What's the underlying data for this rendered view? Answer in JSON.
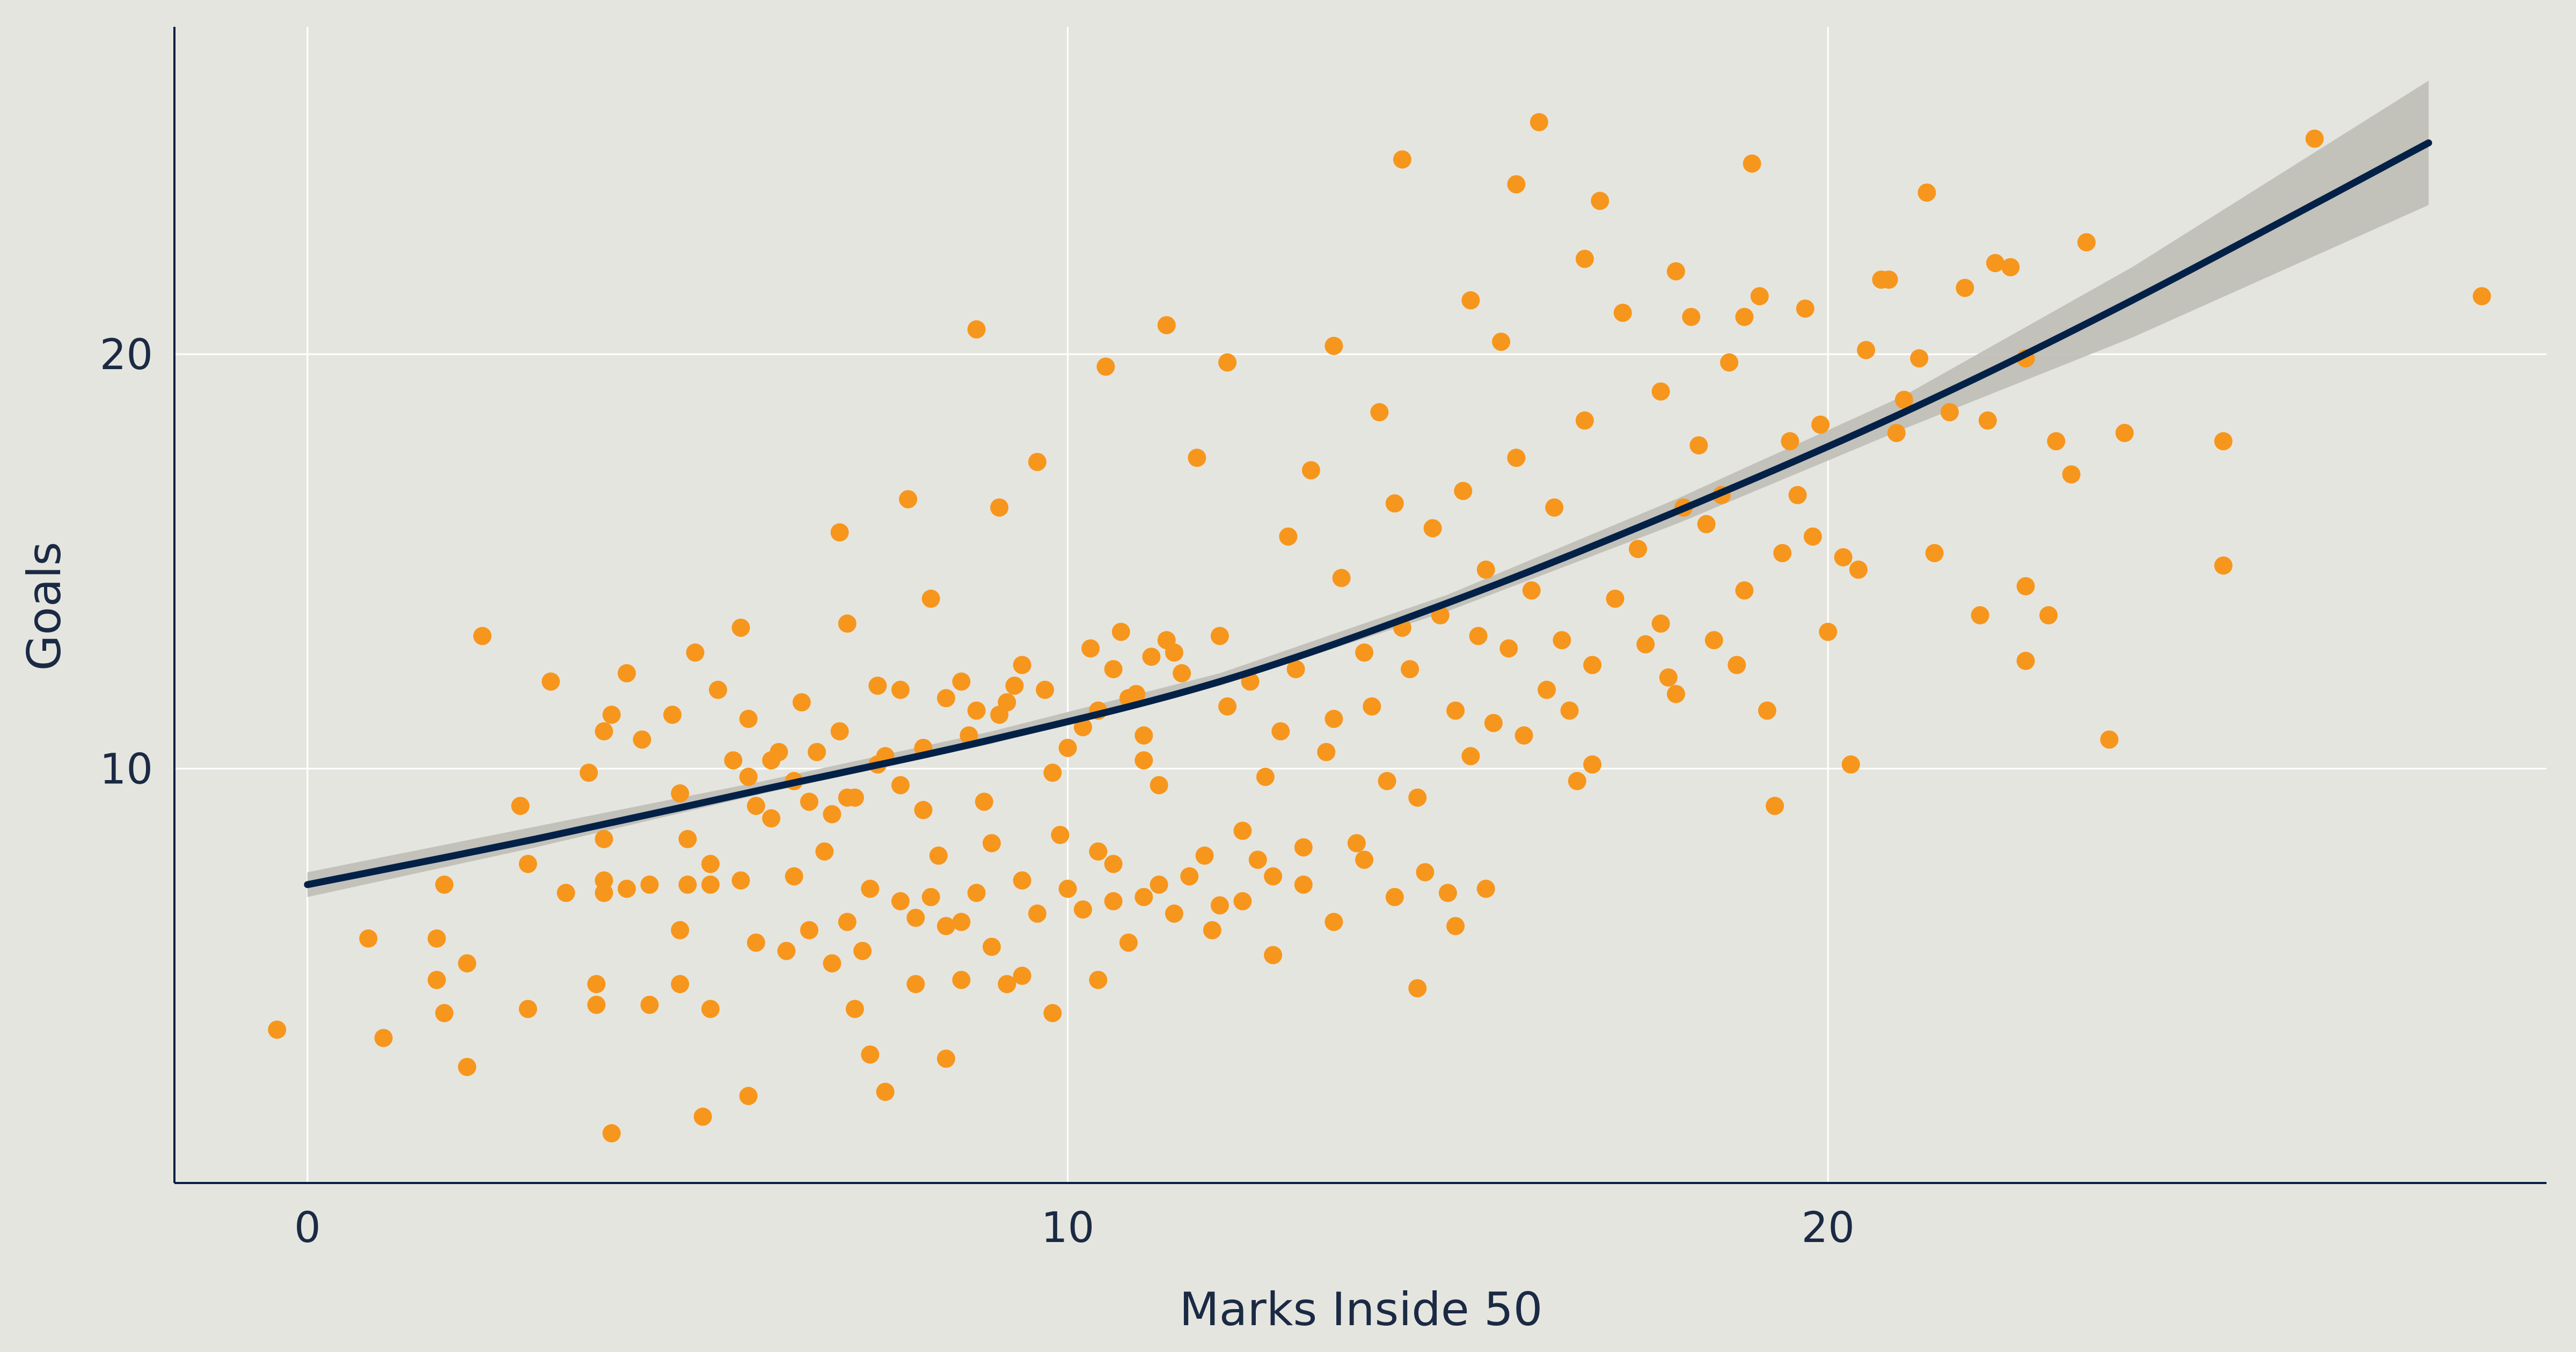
{
  "chart_data": {
    "type": "scatter",
    "title": "",
    "xlabel": "Marks Inside 50",
    "ylabel": "Goals",
    "xlim": [
      -1.75,
      29.45
    ],
    "ylim": [
      0.0,
      27.9
    ],
    "xticks": [
      0,
      10,
      20
    ],
    "yticks": [
      10,
      20
    ],
    "grid": true,
    "legend": "none",
    "colors": {
      "background": "#e5e5df",
      "points": "#f7961c",
      "trend_line": "#032147",
      "confidence_band": "#bebdb6",
      "gridline": "#ffffff",
      "axis": "#032147",
      "text": "#1b2a44"
    },
    "trend": {
      "name": "",
      "x": [
        0,
        3,
        6,
        9,
        12,
        15,
        18,
        21,
        24,
        27.9
      ],
      "y": [
        7.2,
        8.3,
        9.5,
        10.7,
        12.1,
        14.0,
        16.2,
        18.6,
        21.3,
        25.1
      ],
      "lower": [
        6.9,
        8.1,
        9.4,
        10.6,
        12.0,
        13.8,
        15.9,
        18.2,
        20.4,
        23.6
      ],
      "upper": [
        7.5,
        8.6,
        9.7,
        10.9,
        12.3,
        14.2,
        16.5,
        19.0,
        22.1,
        26.6
      ]
    },
    "series": [
      {
        "name": "",
        "points": [
          [
            -0.4,
            3.7
          ],
          [
            0.8,
            5.9
          ],
          [
            1.0,
            3.5
          ],
          [
            1.7,
            4.9
          ],
          [
            1.7,
            5.9
          ],
          [
            1.8,
            4.1
          ],
          [
            1.8,
            7.2
          ],
          [
            2.1,
            2.8
          ],
          [
            2.1,
            5.3
          ],
          [
            2.3,
            13.2
          ],
          [
            2.8,
            9.1
          ],
          [
            2.9,
            4.2
          ],
          [
            2.9,
            7.7
          ],
          [
            3.2,
            12.1
          ],
          [
            3.4,
            7.0
          ],
          [
            3.7,
            9.9
          ],
          [
            3.8,
            4.3
          ],
          [
            3.8,
            4.8
          ],
          [
            3.9,
            7.0
          ],
          [
            3.9,
            7.3
          ],
          [
            3.9,
            8.3
          ],
          [
            3.9,
            10.9
          ],
          [
            4.0,
            1.2
          ],
          [
            4.0,
            11.3
          ],
          [
            4.2,
            7.1
          ],
          [
            4.2,
            12.3
          ],
          [
            4.4,
            10.7
          ],
          [
            4.5,
            7.2
          ],
          [
            4.5,
            4.3
          ],
          [
            4.8,
            11.3
          ],
          [
            4.9,
            9.4
          ],
          [
            4.9,
            6.1
          ],
          [
            4.9,
            4.8
          ],
          [
            5.0,
            8.3
          ],
          [
            5.0,
            7.2
          ],
          [
            5.1,
            12.8
          ],
          [
            5.2,
            1.6
          ],
          [
            5.3,
            7.7
          ],
          [
            5.3,
            4.2
          ],
          [
            5.3,
            7.2
          ],
          [
            5.4,
            11.9
          ],
          [
            5.6,
            10.2
          ],
          [
            5.7,
            13.4
          ],
          [
            5.7,
            7.3
          ],
          [
            5.8,
            9.8
          ],
          [
            5.8,
            11.2
          ],
          [
            5.8,
            2.1
          ],
          [
            5.9,
            5.8
          ],
          [
            6.1,
            8.8
          ],
          [
            6.2,
            10.4
          ],
          [
            6.4,
            7.4
          ],
          [
            6.5,
            11.6
          ],
          [
            6.6,
            9.2
          ],
          [
            6.8,
            8.0
          ],
          [
            7.0,
            10.9
          ],
          [
            7.0,
            15.7
          ],
          [
            7.1,
            9.3
          ],
          [
            7.1,
            13.5
          ],
          [
            7.2,
            4.2
          ],
          [
            7.3,
            5.6
          ],
          [
            7.4,
            7.1
          ],
          [
            7.5,
            12.0
          ],
          [
            7.6,
            10.3
          ],
          [
            7.8,
            11.9
          ],
          [
            7.9,
            16.5
          ],
          [
            8.0,
            6.4
          ],
          [
            8.1,
            9.0
          ],
          [
            8.2,
            14.1
          ],
          [
            8.3,
            7.9
          ],
          [
            8.4,
            6.2
          ],
          [
            8.6,
            4.9
          ],
          [
            8.6,
            12.1
          ],
          [
            8.8,
            11.4
          ],
          [
            8.9,
            9.2
          ],
          [
            9.0,
            8.2
          ],
          [
            9.1,
            16.3
          ],
          [
            9.2,
            11.6
          ],
          [
            9.3,
            12.0
          ],
          [
            9.4,
            5.0
          ],
          [
            9.6,
            17.4
          ],
          [
            9.8,
            9.9
          ],
          [
            9.9,
            8.4
          ],
          [
            10.0,
            10.5
          ],
          [
            10.2,
            11.0
          ],
          [
            10.4,
            8.0
          ],
          [
            10.6,
            6.8
          ],
          [
            10.8,
            11.7
          ],
          [
            11.0,
            10.2
          ],
          [
            11.2,
            9.6
          ],
          [
            11.4,
            12.8
          ],
          [
            11.7,
            17.5
          ],
          [
            11.9,
            6.1
          ],
          [
            12.0,
            13.2
          ],
          [
            12.1,
            11.5
          ],
          [
            12.3,
            8.5
          ],
          [
            12.4,
            12.1
          ],
          [
            12.5,
            7.8
          ],
          [
            12.6,
            9.8
          ],
          [
            12.7,
            5.5
          ],
          [
            12.8,
            10.9
          ],
          [
            12.9,
            15.6
          ],
          [
            13.0,
            12.4
          ],
          [
            13.1,
            8.1
          ],
          [
            13.2,
            17.2
          ],
          [
            13.4,
            10.4
          ],
          [
            13.5,
            11.2
          ],
          [
            13.6,
            14.6
          ],
          [
            13.8,
            8.2
          ],
          [
            13.9,
            12.8
          ],
          [
            14.0,
            11.5
          ],
          [
            14.1,
            18.6
          ],
          [
            14.2,
            9.7
          ],
          [
            14.3,
            16.4
          ],
          [
            14.4,
            13.4
          ],
          [
            14.5,
            12.4
          ],
          [
            14.6,
            9.3
          ],
          [
            14.6,
            4.7
          ],
          [
            14.8,
            15.8
          ],
          [
            14.9,
            13.7
          ],
          [
            15.0,
            7.0
          ],
          [
            15.1,
            11.4
          ],
          [
            15.2,
            16.7
          ],
          [
            15.3,
            10.3
          ],
          [
            15.4,
            13.2
          ],
          [
            15.5,
            14.8
          ],
          [
            15.6,
            11.1
          ],
          [
            15.7,
            20.3
          ],
          [
            15.8,
            12.9
          ],
          [
            15.9,
            17.5
          ],
          [
            16.0,
            10.8
          ],
          [
            16.1,
            14.3
          ],
          [
            16.2,
            25.6
          ],
          [
            16.3,
            11.9
          ],
          [
            16.4,
            16.3
          ],
          [
            16.5,
            13.1
          ],
          [
            16.6,
            11.4
          ],
          [
            16.7,
            9.7
          ],
          [
            16.8,
            18.4
          ],
          [
            16.9,
            12.5
          ],
          [
            16.9,
            10.1
          ],
          [
            17.0,
            23.7
          ],
          [
            17.2,
            14.1
          ],
          [
            17.3,
            21.0
          ],
          [
            17.5,
            15.3
          ],
          [
            17.6,
            13.0
          ],
          [
            17.8,
            13.5
          ],
          [
            17.9,
            12.2
          ],
          [
            18.0,
            11.8
          ],
          [
            18.1,
            16.3
          ],
          [
            18.2,
            20.9
          ],
          [
            18.3,
            17.8
          ],
          [
            18.4,
            15.9
          ],
          [
            18.5,
            13.1
          ],
          [
            18.6,
            16.6
          ],
          [
            18.7,
            19.8
          ],
          [
            18.8,
            12.5
          ],
          [
            18.9,
            14.3
          ],
          [
            19.0,
            24.6
          ],
          [
            19.1,
            21.4
          ],
          [
            19.2,
            11.4
          ],
          [
            19.3,
            9.1
          ],
          [
            19.4,
            15.2
          ],
          [
            19.5,
            17.9
          ],
          [
            19.6,
            16.6
          ],
          [
            19.7,
            21.1
          ],
          [
            19.8,
            15.6
          ],
          [
            19.9,
            18.3
          ],
          [
            20.0,
            13.3
          ],
          [
            20.2,
            15.1
          ],
          [
            20.3,
            10.1
          ],
          [
            20.4,
            14.8
          ],
          [
            20.5,
            20.1
          ],
          [
            20.7,
            21.8
          ],
          [
            20.9,
            18.1
          ],
          [
            21.0,
            18.9
          ],
          [
            21.2,
            19.9
          ],
          [
            21.3,
            23.9
          ],
          [
            21.4,
            15.2
          ],
          [
            21.6,
            18.6
          ],
          [
            21.8,
            21.6
          ],
          [
            22.0,
            13.7
          ],
          [
            22.1,
            18.4
          ],
          [
            22.2,
            22.2
          ],
          [
            22.4,
            22.1
          ],
          [
            22.6,
            19.9
          ],
          [
            22.6,
            14.4
          ],
          [
            22.6,
            12.6
          ],
          [
            22.9,
            13.7
          ],
          [
            23.0,
            17.9
          ],
          [
            23.2,
            17.1
          ],
          [
            23.4,
            22.7
          ],
          [
            23.7,
            10.7
          ],
          [
            23.9,
            18.1
          ],
          [
            25.2,
            17.9
          ],
          [
            25.2,
            14.9
          ],
          [
            26.4,
            25.2
          ],
          [
            28.6,
            21.4
          ],
          [
            8.8,
            20.6
          ],
          [
            10.5,
            19.7
          ],
          [
            11.3,
            20.7
          ],
          [
            12.1,
            19.8
          ],
          [
            13.5,
            20.2
          ],
          [
            14.4,
            24.7
          ],
          [
            15.3,
            21.3
          ],
          [
            15.9,
            24.1
          ],
          [
            16.8,
            22.3
          ],
          [
            17.8,
            19.1
          ],
          [
            18.0,
            22.0
          ],
          [
            18.9,
            20.9
          ],
          [
            20.8,
            21.8
          ],
          [
            6.3,
            5.6
          ],
          [
            6.6,
            6.1
          ],
          [
            6.9,
            5.3
          ],
          [
            7.1,
            6.3
          ],
          [
            7.4,
            3.1
          ],
          [
            7.6,
            2.2
          ],
          [
            7.8,
            6.8
          ],
          [
            8.0,
            4.8
          ],
          [
            8.2,
            6.9
          ],
          [
            8.4,
            3.0
          ],
          [
            8.6,
            6.3
          ],
          [
            8.8,
            7.0
          ],
          [
            9.0,
            5.7
          ],
          [
            9.2,
            4.8
          ],
          [
            9.4,
            7.3
          ],
          [
            9.6,
            6.5
          ],
          [
            9.8,
            4.1
          ],
          [
            10.0,
            7.1
          ],
          [
            10.2,
            6.6
          ],
          [
            10.4,
            4.9
          ],
          [
            10.6,
            7.7
          ],
          [
            10.8,
            5.8
          ],
          [
            11.0,
            6.9
          ],
          [
            11.2,
            7.2
          ],
          [
            11.4,
            6.5
          ],
          [
            11.6,
            7.4
          ],
          [
            11.8,
            7.9
          ],
          [
            12.0,
            6.7
          ],
          [
            12.3,
            6.8
          ],
          [
            12.7,
            7.4
          ],
          [
            13.1,
            7.2
          ],
          [
            13.5,
            6.3
          ],
          [
            13.9,
            7.8
          ],
          [
            14.3,
            6.9
          ],
          [
            14.7,
            7.5
          ],
          [
            15.1,
            6.2
          ],
          [
            15.5,
            7.1
          ],
          [
            10.3,
            12.9
          ],
          [
            10.7,
            13.3
          ],
          [
            11.1,
            12.7
          ],
          [
            10.9,
            11.8
          ],
          [
            10.6,
            12.4
          ],
          [
            11.3,
            13.1
          ],
          [
            11.5,
            12.3
          ],
          [
            11.0,
            10.8
          ],
          [
            10.4,
            11.4
          ],
          [
            9.7,
            11.9
          ],
          [
            9.4,
            12.5
          ],
          [
            9.1,
            11.3
          ],
          [
            8.7,
            10.8
          ],
          [
            8.4,
            11.7
          ],
          [
            8.1,
            10.5
          ],
          [
            7.8,
            9.6
          ],
          [
            7.5,
            10.1
          ],
          [
            7.2,
            9.3
          ],
          [
            6.9,
            8.9
          ],
          [
            6.7,
            10.4
          ],
          [
            6.4,
            9.7
          ],
          [
            6.1,
            10.2
          ],
          [
            5.9,
            9.1
          ]
        ]
      }
    ]
  }
}
